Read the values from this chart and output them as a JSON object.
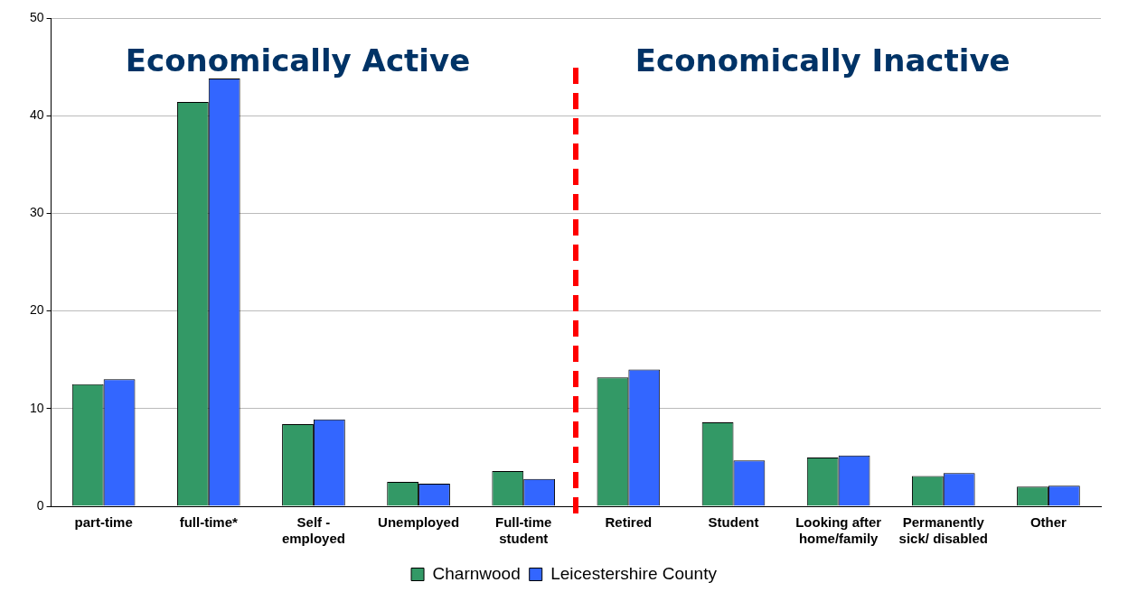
{
  "chart_data": {
    "type": "bar",
    "categories": [
      "part-time",
      "full-time*",
      "Self - employed",
      "Unemployed",
      "Full-time student",
      "Retired",
      "Student",
      "Looking after home/family",
      "Permanently sick/ disabled",
      "Other"
    ],
    "series": [
      {
        "name": "Charnwood",
        "color": "#339966",
        "values": [
          12.5,
          41.4,
          8.4,
          2.5,
          3.6,
          13.2,
          8.6,
          5.0,
          3.1,
          2.0
        ]
      },
      {
        "name": "Leicestershire County",
        "color": "#3366ff",
        "values": [
          13.0,
          43.8,
          8.9,
          2.3,
          2.8,
          14.0,
          4.7,
          5.2,
          3.4,
          2.1
        ]
      }
    ],
    "ylim": [
      0,
      50
    ],
    "yticks": [
      0,
      10,
      20,
      30,
      40,
      50
    ],
    "grid": "y",
    "legend": "bottom",
    "annotations": [
      "Economically Active",
      "Economically Inactive"
    ]
  }
}
